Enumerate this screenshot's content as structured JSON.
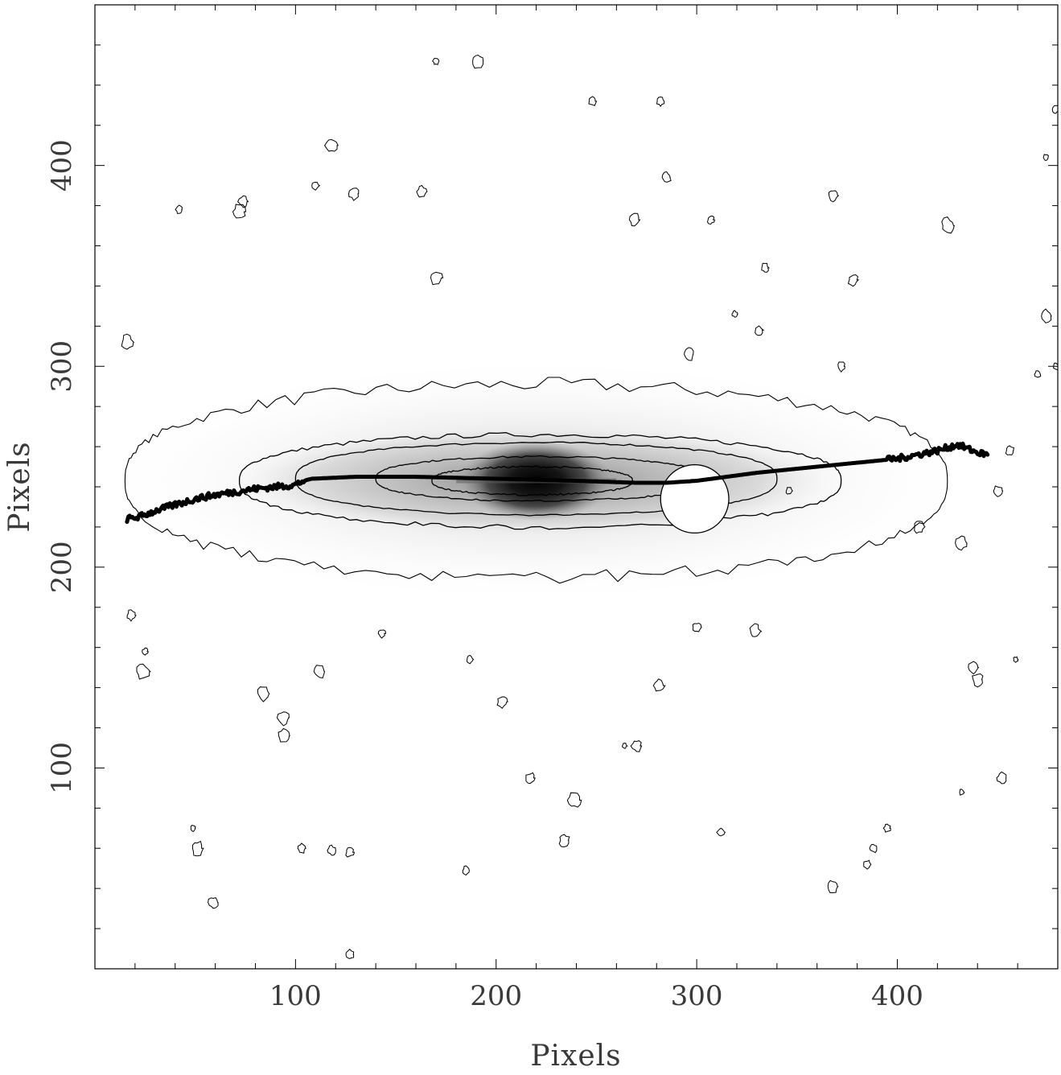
{
  "chart_data": {
    "type": "contour-image",
    "xlabel": "Pixels",
    "ylabel": "Pixels",
    "xlim": [
      0,
      480
    ],
    "ylim": [
      0,
      480
    ],
    "x_ticks": [
      100,
      200,
      300,
      400
    ],
    "y_ticks": [
      100,
      200,
      300,
      400
    ],
    "x_tick_labels": [
      "100",
      "200",
      "300",
      "400"
    ],
    "y_tick_labels": [
      "100",
      "200",
      "300",
      "400"
    ],
    "grid": false,
    "colormap": "grayscale (white low, black high)",
    "galaxy": {
      "center": [
        220,
        243
      ],
      "disk_semi_major": 150,
      "disk_semi_minor": 28,
      "bulge_semi_major": 38,
      "bulge_semi_minor": 20
    },
    "contours": [
      {
        "level": 1,
        "center": [
          220,
          243
        ],
        "a": 205,
        "b": 48
      },
      {
        "level": 2,
        "center": [
          222,
          243
        ],
        "a": 150,
        "b": 23
      },
      {
        "level": 3,
        "center": [
          220,
          244
        ],
        "a": 120,
        "b": 18
      },
      {
        "level": 4,
        "center": [
          222,
          244
        ],
        "a": 82,
        "b": 11
      },
      {
        "level": 5,
        "center": [
          218,
          243
        ],
        "a": 50,
        "b": 7
      }
    ],
    "masked_region": {
      "center": [
        299,
        234
      ],
      "radius": 17
    },
    "warp_midline": {
      "x": [
        16,
        22,
        30,
        40,
        50,
        60,
        80,
        100,
        104,
        108,
        130,
        160,
        200,
        240,
        270,
        285,
        300,
        330,
        360,
        380,
        400,
        420,
        430,
        440,
        445
      ],
      "y": [
        224,
        225,
        228,
        231,
        234,
        236,
        239,
        241,
        243,
        244,
        245,
        245,
        244,
        243,
        242,
        242,
        243,
        247,
        250,
        252,
        254,
        258,
        261,
        257,
        256
      ]
    },
    "knots": [
      [
        170,
        452
      ],
      [
        191,
        452
      ],
      [
        248,
        432
      ],
      [
        282,
        432
      ],
      [
        118,
        410
      ],
      [
        110,
        390
      ],
      [
        129,
        386
      ],
      [
        163,
        387
      ],
      [
        74,
        382
      ],
      [
        42,
        378
      ],
      [
        72,
        377
      ],
      [
        368,
        385
      ],
      [
        307,
        373
      ],
      [
        269,
        373
      ],
      [
        425,
        370
      ],
      [
        334,
        349
      ],
      [
        378,
        343
      ],
      [
        170,
        344
      ],
      [
        319,
        326
      ],
      [
        331,
        318
      ],
      [
        16,
        312
      ],
      [
        372,
        300
      ],
      [
        296,
        306
      ],
      [
        470,
        296
      ],
      [
        474,
        325
      ],
      [
        285,
        394
      ],
      [
        479,
        428
      ],
      [
        474,
        404
      ],
      [
        479,
        300
      ],
      [
        18,
        176
      ],
      [
        25,
        158
      ],
      [
        24,
        148
      ],
      [
        143,
        167
      ],
      [
        112,
        148
      ],
      [
        84,
        137
      ],
      [
        94,
        125
      ],
      [
        94,
        116
      ],
      [
        187,
        154
      ],
      [
        203,
        133
      ],
      [
        217,
        95
      ],
      [
        239,
        84
      ],
      [
        270,
        111
      ],
      [
        264,
        111
      ],
      [
        234,
        64
      ],
      [
        118,
        59
      ],
      [
        127,
        58
      ],
      [
        103,
        60
      ],
      [
        49,
        70
      ],
      [
        51,
        60
      ],
      [
        59,
        33
      ],
      [
        127,
        7
      ],
      [
        185,
        49
      ],
      [
        346,
        238
      ],
      [
        432,
        212
      ],
      [
        411,
        220
      ],
      [
        440,
        144
      ],
      [
        459,
        154
      ],
      [
        456,
        258
      ],
      [
        450,
        238
      ],
      [
        438,
        150
      ],
      [
        385,
        52
      ],
      [
        368,
        41
      ],
      [
        312,
        68
      ],
      [
        281,
        141
      ],
      [
        300,
        170
      ],
      [
        329,
        168
      ],
      [
        432,
        88
      ],
      [
        395,
        70
      ],
      [
        388,
        60
      ],
      [
        452,
        95
      ]
    ]
  }
}
